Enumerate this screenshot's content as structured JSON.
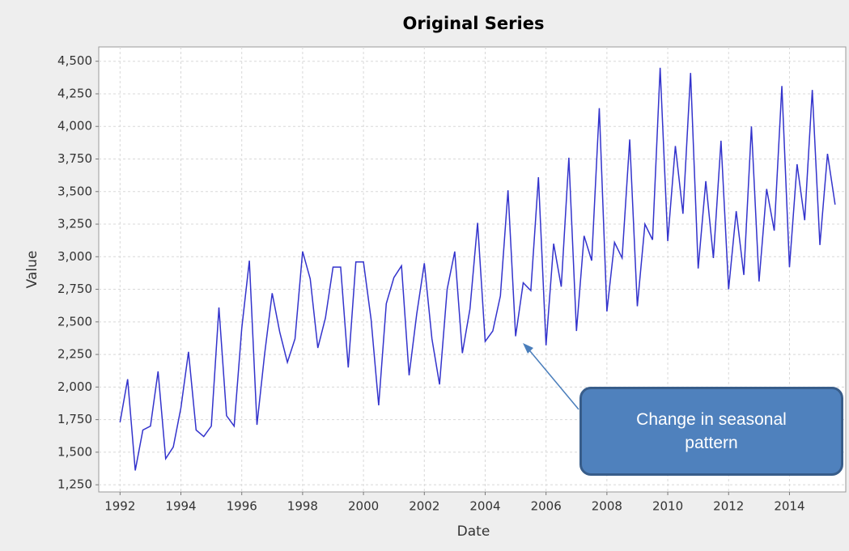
{
  "chart_data": {
    "type": "line",
    "title": "Original Series",
    "x_label": "Date",
    "y_label": "Value",
    "annotation": "Change in seasonal pattern",
    "color": "#3333cc",
    "grid": true,
    "xlim": [
      1991.3,
      2015.85
    ],
    "ylim": [
      1195,
      4610
    ],
    "xticks": [
      1992,
      1994,
      1996,
      1998,
      2000,
      2002,
      2004,
      2006,
      2008,
      2010,
      2012,
      2014
    ],
    "yticks": [
      {
        "value": 1250,
        "label": "1,250"
      },
      {
        "value": 1500,
        "label": "1,500"
      },
      {
        "value": 1750,
        "label": "1,750"
      },
      {
        "value": 2000,
        "label": "2,000"
      },
      {
        "value": 2250,
        "label": "2,250"
      },
      {
        "value": 2500,
        "label": "2,500"
      },
      {
        "value": 2750,
        "label": "2,750"
      },
      {
        "value": 3000,
        "label": "3,000"
      },
      {
        "value": 3250,
        "label": "3,250"
      },
      {
        "value": 3500,
        "label": "3,500"
      },
      {
        "value": 3750,
        "label": "3,750"
      },
      {
        "value": 4000,
        "label": "4,000"
      },
      {
        "value": 4250,
        "label": "4,250"
      },
      {
        "value": 4500,
        "label": "4,500"
      }
    ],
    "x": [
      1992,
      1992.25,
      1992.5,
      1992.75,
      1993,
      1993.25,
      1993.5,
      1993.75,
      1994,
      1994.25,
      1994.5,
      1994.75,
      1995,
      1995.25,
      1995.5,
      1995.75,
      1996,
      1996.25,
      1996.5,
      1996.75,
      1997,
      1997.25,
      1997.5,
      1997.75,
      1998,
      1998.25,
      1998.5,
      1998.75,
      1999,
      1999.25,
      1999.5,
      1999.75,
      2000,
      2000.25,
      2000.5,
      2000.75,
      2001,
      2001.25,
      2001.5,
      2001.75,
      2002,
      2002.25,
      2002.5,
      2002.75,
      2003,
      2003.25,
      2003.5,
      2003.75,
      2004,
      2004.25,
      2004.5,
      2004.75,
      2005,
      2005.25,
      2005.5,
      2005.75,
      2006,
      2006.25,
      2006.5,
      2006.75,
      2007,
      2007.25,
      2007.5,
      2007.75,
      2008,
      2008.25,
      2008.5,
      2008.75,
      2009,
      2009.25,
      2009.5,
      2009.75,
      2010,
      2010.25,
      2010.5,
      2010.75,
      2011,
      2011.25,
      2011.5,
      2011.75,
      2012,
      2012.25,
      2012.5,
      2012.75,
      2013,
      2013.25,
      2013.5,
      2013.75,
      2014,
      2014.25,
      2014.5,
      2014.75,
      2015,
      2015.25,
      2015.5
    ],
    "values": [
      1730,
      2060,
      1360,
      1670,
      1700,
      2120,
      1450,
      1540,
      1840,
      2270,
      1670,
      1620,
      1700,
      2610,
      1780,
      1700,
      2450,
      2970,
      1710,
      2250,
      2720,
      2420,
      2190,
      2370,
      3040,
      2830,
      2300,
      2530,
      2920,
      2920,
      2150,
      2960,
      2960,
      2520,
      1860,
      2640,
      2840,
      2930,
      2090,
      2560,
      2950,
      2370,
      2020,
      2750,
      3040,
      2260,
      2600,
      3260,
      2350,
      2430,
      2700,
      3510,
      2390,
      2800,
      2740,
      3610,
      2320,
      3100,
      2770,
      3760,
      2430,
      3160,
      2970,
      4140,
      2580,
      3110,
      2990,
      3900,
      2620,
      3250,
      3130,
      4450,
      3120,
      3850,
      3330,
      4410,
      2910,
      3580,
      2990,
      3890,
      2750,
      3350,
      2860,
      4000,
      2810,
      3520,
      3200,
      4310,
      2920,
      3710,
      3280,
      4280,
      3090,
      3790,
      3400
    ]
  }
}
